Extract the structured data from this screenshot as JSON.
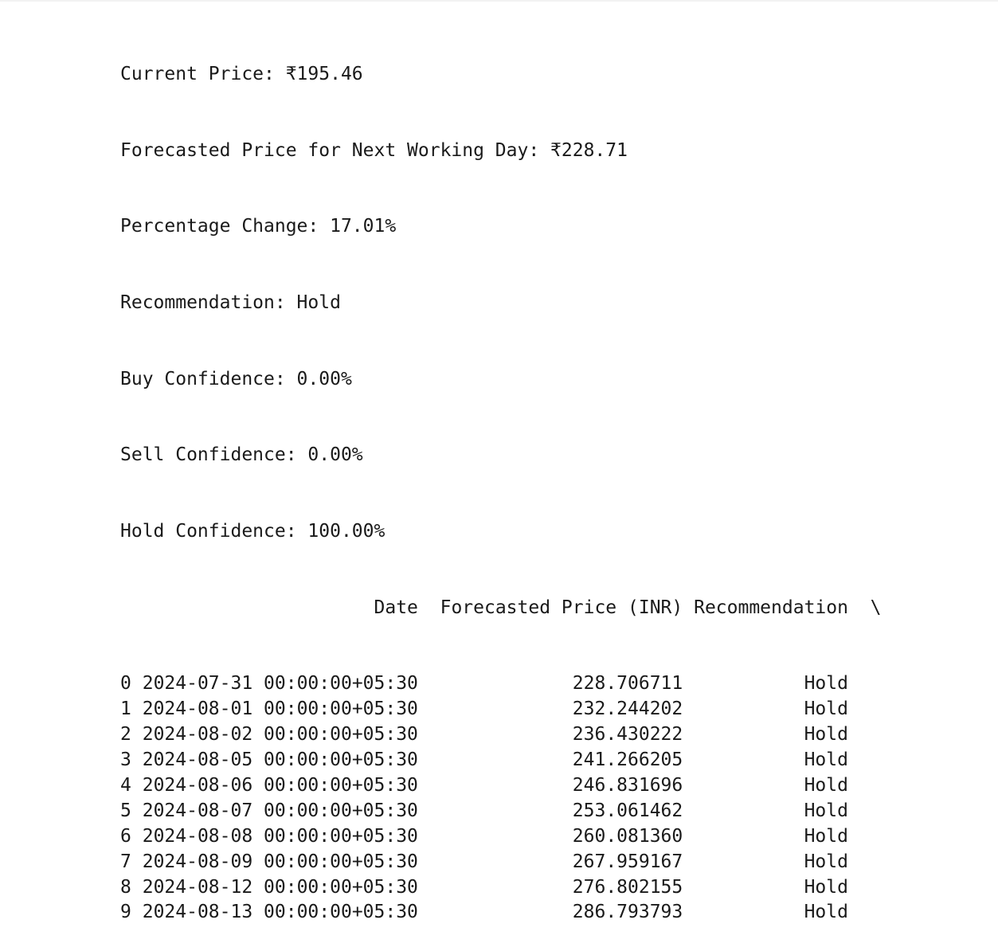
{
  "summary": {
    "current_price": "Current Price: ₹195.46",
    "forecasted_price": "Forecasted Price for Next Working Day: ₹228.71",
    "percentage_change": "Percentage Change: 17.01%",
    "recommendation": "Recommendation: Hold",
    "buy_confidence": "Buy Confidence: 0.00%",
    "sell_confidence": "Sell Confidence: 0.00%",
    "hold_confidence": "Hold Confidence: 100.00%"
  },
  "table": {
    "columns": [
      "Date",
      "Forecasted Price (INR)",
      "Recommendation"
    ],
    "continuation_marker": "\\",
    "rows": [
      {
        "index": "0",
        "date": "2024-07-31 00:00:00+05:30",
        "price": "228.706711",
        "rec": "Hold"
      },
      {
        "index": "1",
        "date": "2024-08-01 00:00:00+05:30",
        "price": "232.244202",
        "rec": "Hold"
      },
      {
        "index": "2",
        "date": "2024-08-02 00:00:00+05:30",
        "price": "236.430222",
        "rec": "Hold"
      },
      {
        "index": "3",
        "date": "2024-08-05 00:00:00+05:30",
        "price": "241.266205",
        "rec": "Hold"
      },
      {
        "index": "4",
        "date": "2024-08-06 00:00:00+05:30",
        "price": "246.831696",
        "rec": "Hold"
      },
      {
        "index": "5",
        "date": "2024-08-07 00:00:00+05:30",
        "price": "253.061462",
        "rec": "Hold"
      },
      {
        "index": "6",
        "date": "2024-08-08 00:00:00+05:30",
        "price": "260.081360",
        "rec": "Hold"
      },
      {
        "index": "7",
        "date": "2024-08-09 00:00:00+05:30",
        "price": "267.959167",
        "rec": "Hold"
      },
      {
        "index": "8",
        "date": "2024-08-12 00:00:00+05:30",
        "price": "276.802155",
        "rec": "Hold"
      },
      {
        "index": "9",
        "date": "2024-08-13 00:00:00+05:30",
        "price": "286.793793",
        "rec": "Hold"
      }
    ]
  }
}
